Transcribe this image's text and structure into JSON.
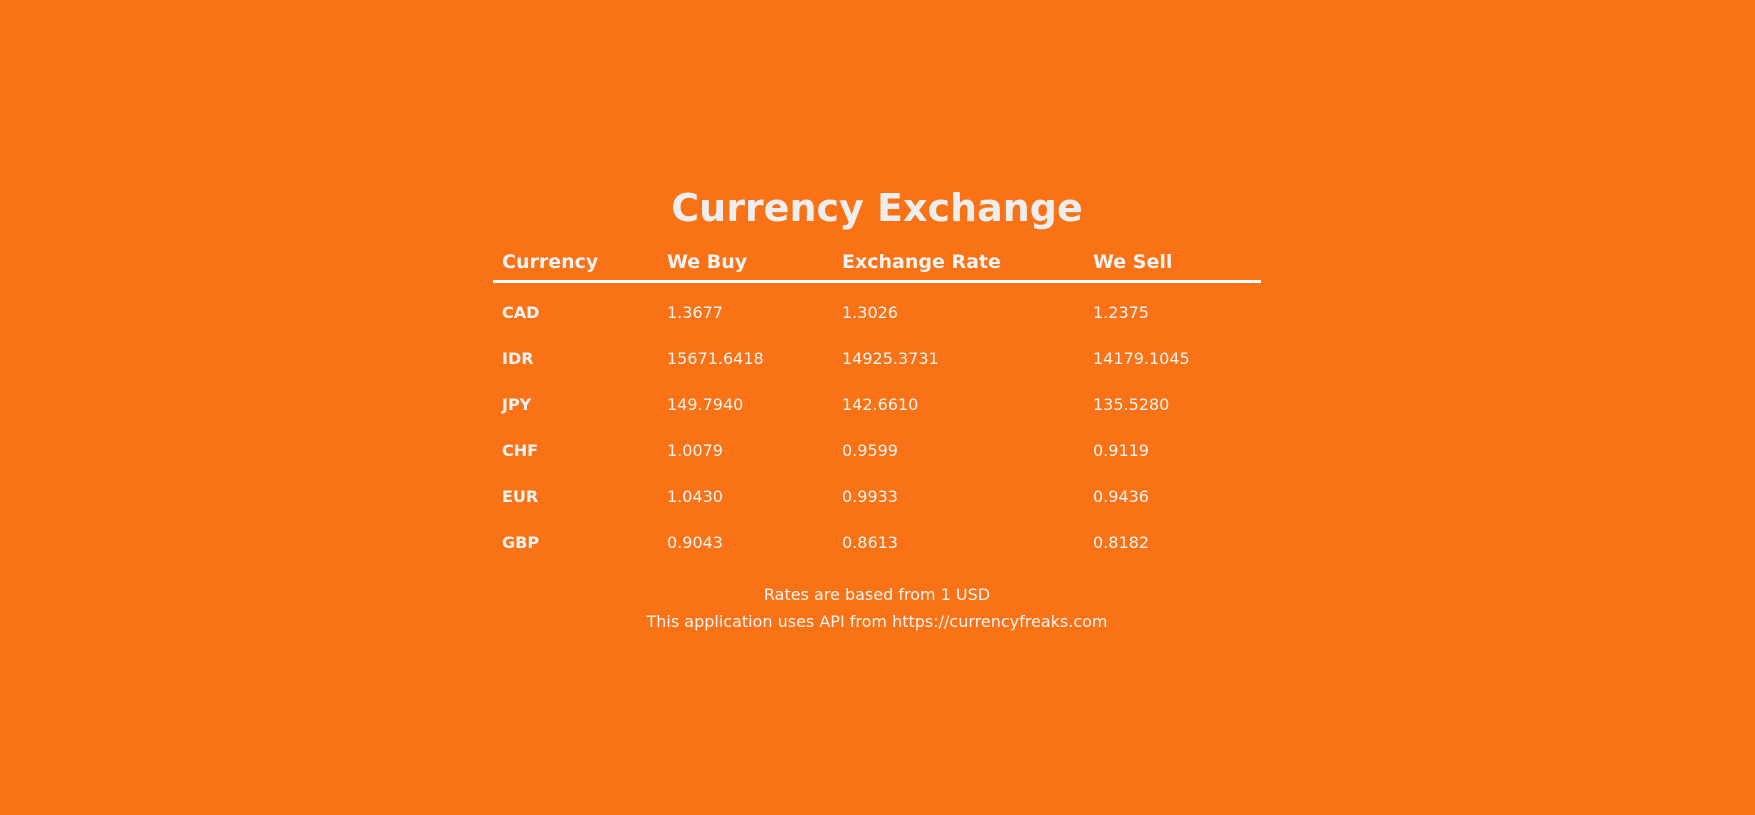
{
  "page": {
    "title": "Currency Exchange"
  },
  "table": {
    "headers": {
      "currency": "Currency",
      "we_buy": "We Buy",
      "exchange_rate": "Exchange Rate",
      "we_sell": "We Sell"
    },
    "rows": [
      {
        "currency": "CAD",
        "we_buy": "1.3677",
        "exchange_rate": "1.3026",
        "we_sell": "1.2375"
      },
      {
        "currency": "IDR",
        "we_buy": "15671.6418",
        "exchange_rate": "14925.3731",
        "we_sell": "14179.1045"
      },
      {
        "currency": "JPY",
        "we_buy": "149.7940",
        "exchange_rate": "142.6610",
        "we_sell": "135.5280"
      },
      {
        "currency": "CHF",
        "we_buy": "1.0079",
        "exchange_rate": "0.9599",
        "we_sell": "0.9119"
      },
      {
        "currency": "EUR",
        "we_buy": "1.0430",
        "exchange_rate": "0.9933",
        "we_sell": "0.9436"
      },
      {
        "currency": "GBP",
        "we_buy": "0.9043",
        "exchange_rate": "0.8613",
        "we_sell": "0.8182"
      }
    ]
  },
  "footer": {
    "note": "Rates are based from 1 USD",
    "api_credit": "This application uses API from https://currencyfreaks.com"
  },
  "colors": {
    "background": "#f97316",
    "text": "#f1f1f1",
    "header_rule": "#ffffff"
  }
}
